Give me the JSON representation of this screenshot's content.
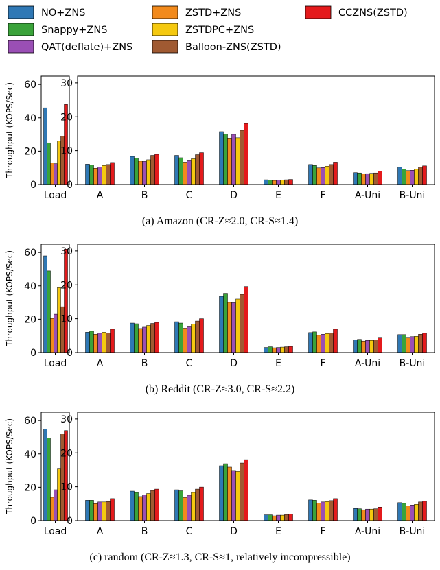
{
  "chart_data": {
    "type": "bar",
    "legend": {
      "placement": "top",
      "entries": [
        {
          "name": "NO+ZNS",
          "color": "#2f78b5"
        },
        {
          "name": "Snappy+ZNS",
          "color": "#3aa33a"
        },
        {
          "name": "QAT(deflate)+ZNS",
          "color": "#9a4fb5"
        },
        {
          "name": "ZSTD+ZNS",
          "color": "#f28a1c"
        },
        {
          "name": "ZSTDPC+ZNS",
          "color": "#f5c90f"
        },
        {
          "name": "Balloon-ZNS(ZSTD)",
          "color": "#a05a32"
        },
        {
          "name": "CCZNS(ZSTD)",
          "color": "#e41a1c"
        }
      ]
    },
    "series_order": [
      "NO+ZNS",
      "Snappy+ZNS",
      "ZSTD+ZNS",
      "QAT(deflate)+ZNS",
      "ZSTDPC+ZNS",
      "Balloon-ZNS(ZSTD)",
      "CCZNS(ZSTD)"
    ],
    "ylabel": "Throughput (KOPS/Sec)",
    "grid": false,
    "load_ylim": [
      0,
      65
    ],
    "load_yticks": [
      0,
      20,
      40,
      60
    ],
    "main_ylim": [
      0,
      32
    ],
    "main_yticks": [
      0,
      10,
      20,
      30
    ],
    "load_category": "Load",
    "main_categories": [
      "A",
      "B",
      "C",
      "D",
      "E",
      "F",
      "A-Uni",
      "B-Uni"
    ],
    "panels": [
      {
        "caption": "(a)  Amazon (CR-Z≈2.0, CR-S≈1.4)",
        "load": [
          46,
          25,
          13,
          12.5,
          26,
          29,
          48
        ],
        "main": [
          [
            6.0,
            5.8,
            4.8,
            5.2,
            5.6,
            5.9,
            6.5
          ],
          [
            8.3,
            7.8,
            6.9,
            6.8,
            7.3,
            8.6,
            8.9
          ],
          [
            8.6,
            7.9,
            6.6,
            7.2,
            7.6,
            8.8,
            9.4
          ],
          [
            15.6,
            14.9,
            13.7,
            14.8,
            13.8,
            16.0,
            18.0
          ],
          [
            1.4,
            1.35,
            1.2,
            1.3,
            1.35,
            1.4,
            1.5
          ],
          [
            5.9,
            5.6,
            4.9,
            5.0,
            5.4,
            5.9,
            6.6
          ],
          [
            3.5,
            3.4,
            3.1,
            3.2,
            3.3,
            3.4,
            4.0
          ],
          [
            5.1,
            4.6,
            4.1,
            4.2,
            4.5,
            5.1,
            5.5
          ]
        ]
      },
      {
        "caption": "(b)  Reddit (CR-Z≈3.0, CR-S≈2.2)",
        "load": [
          58,
          49,
          20.5,
          23,
          39,
          27.5,
          62
        ],
        "main": [
          [
            6.0,
            6.3,
            5.4,
            5.7,
            6.0,
            5.8,
            6.9
          ],
          [
            8.7,
            8.5,
            7.1,
            7.5,
            8.0,
            8.6,
            8.9
          ],
          [
            9.1,
            8.7,
            7.2,
            7.6,
            8.4,
            9.3,
            10.0
          ],
          [
            16.6,
            17.5,
            14.8,
            14.7,
            15.8,
            17.2,
            19.5
          ],
          [
            1.5,
            1.7,
            1.4,
            1.5,
            1.6,
            1.7,
            1.8
          ],
          [
            5.9,
            6.1,
            5.1,
            5.4,
            5.6,
            5.8,
            6.9
          ],
          [
            3.7,
            3.9,
            3.4,
            3.6,
            3.6,
            3.7,
            4.3
          ],
          [
            5.3,
            5.3,
            4.3,
            4.7,
            4.8,
            5.4,
            5.7
          ]
        ]
      },
      {
        "caption": "(c)  random (CR-Z≈1.3, CR-S≈1, relatively incompressible)",
        "load": [
          55,
          49.5,
          14,
          18.5,
          31,
          52,
          54
        ],
        "main": [
          [
            6.0,
            6.0,
            5.0,
            5.5,
            5.5,
            5.6,
            6.5
          ],
          [
            8.7,
            8.3,
            7.1,
            7.6,
            8.0,
            8.9,
            9.3
          ],
          [
            9.1,
            8.8,
            6.8,
            7.5,
            8.3,
            9.3,
            9.9
          ],
          [
            16.2,
            16.8,
            15.8,
            14.8,
            14.5,
            17.0,
            18.0
          ],
          [
            1.7,
            1.7,
            1.4,
            1.6,
            1.6,
            1.8,
            1.9
          ],
          [
            6.1,
            6.0,
            5.2,
            5.5,
            5.6,
            5.9,
            6.5
          ],
          [
            3.6,
            3.5,
            3.2,
            3.4,
            3.4,
            3.5,
            4.0
          ],
          [
            5.3,
            5.1,
            4.3,
            4.6,
            4.8,
            5.5,
            5.7
          ]
        ]
      }
    ]
  }
}
